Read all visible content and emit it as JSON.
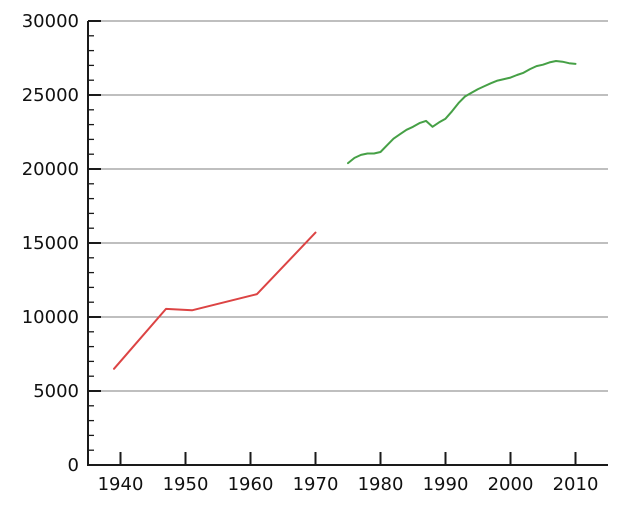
{
  "colors": {
    "background": "#ffffff",
    "axis": "#1a1a1a",
    "grid": "#999999",
    "tick_label": "#111111",
    "series_red": "#dc4444",
    "series_green": "#46a046"
  },
  "chart_data": {
    "type": "line",
    "title": "",
    "subtitle": "",
    "xlabel": "",
    "ylabel": "",
    "legend": "none",
    "grid": "horizontal-major-only",
    "xlim": [
      1935,
      2015
    ],
    "ylim": [
      0,
      30000
    ],
    "x_ticks": [
      1940,
      1950,
      1960,
      1970,
      1980,
      1990,
      2000,
      2010
    ],
    "y_ticks": [
      0,
      5000,
      10000,
      15000,
      20000,
      25000,
      30000
    ],
    "y_minor_step": 1000,
    "series": [
      {
        "name": "red-series",
        "color": "#dc4444",
        "x": [
          1939,
          1947,
          1951,
          1961,
          1970
        ],
        "y": [
          6500,
          10550,
          10450,
          11550,
          15700
        ]
      },
      {
        "name": "green-series",
        "color": "#46a046",
        "x": [
          1975,
          1976,
          1977,
          1978,
          1979,
          1980,
          1981,
          1982,
          1983,
          1984,
          1985,
          1986,
          1987,
          1988,
          1989,
          1990,
          1991,
          1992,
          1993,
          1994,
          1995,
          1996,
          1997,
          1998,
          1999,
          2000,
          2001,
          2002,
          2003,
          2004,
          2005,
          2006,
          2007,
          2008,
          2009,
          2010
        ],
        "y": [
          20400,
          20750,
          20950,
          21050,
          21050,
          21150,
          21600,
          22050,
          22350,
          22650,
          22850,
          23100,
          23250,
          22850,
          23150,
          23400,
          23900,
          24450,
          24900,
          25150,
          25400,
          25600,
          25800,
          25975,
          26075,
          26175,
          26350,
          26500,
          26750,
          26950,
          27050,
          27200,
          27300,
          27250,
          27150,
          27100
        ]
      }
    ]
  }
}
